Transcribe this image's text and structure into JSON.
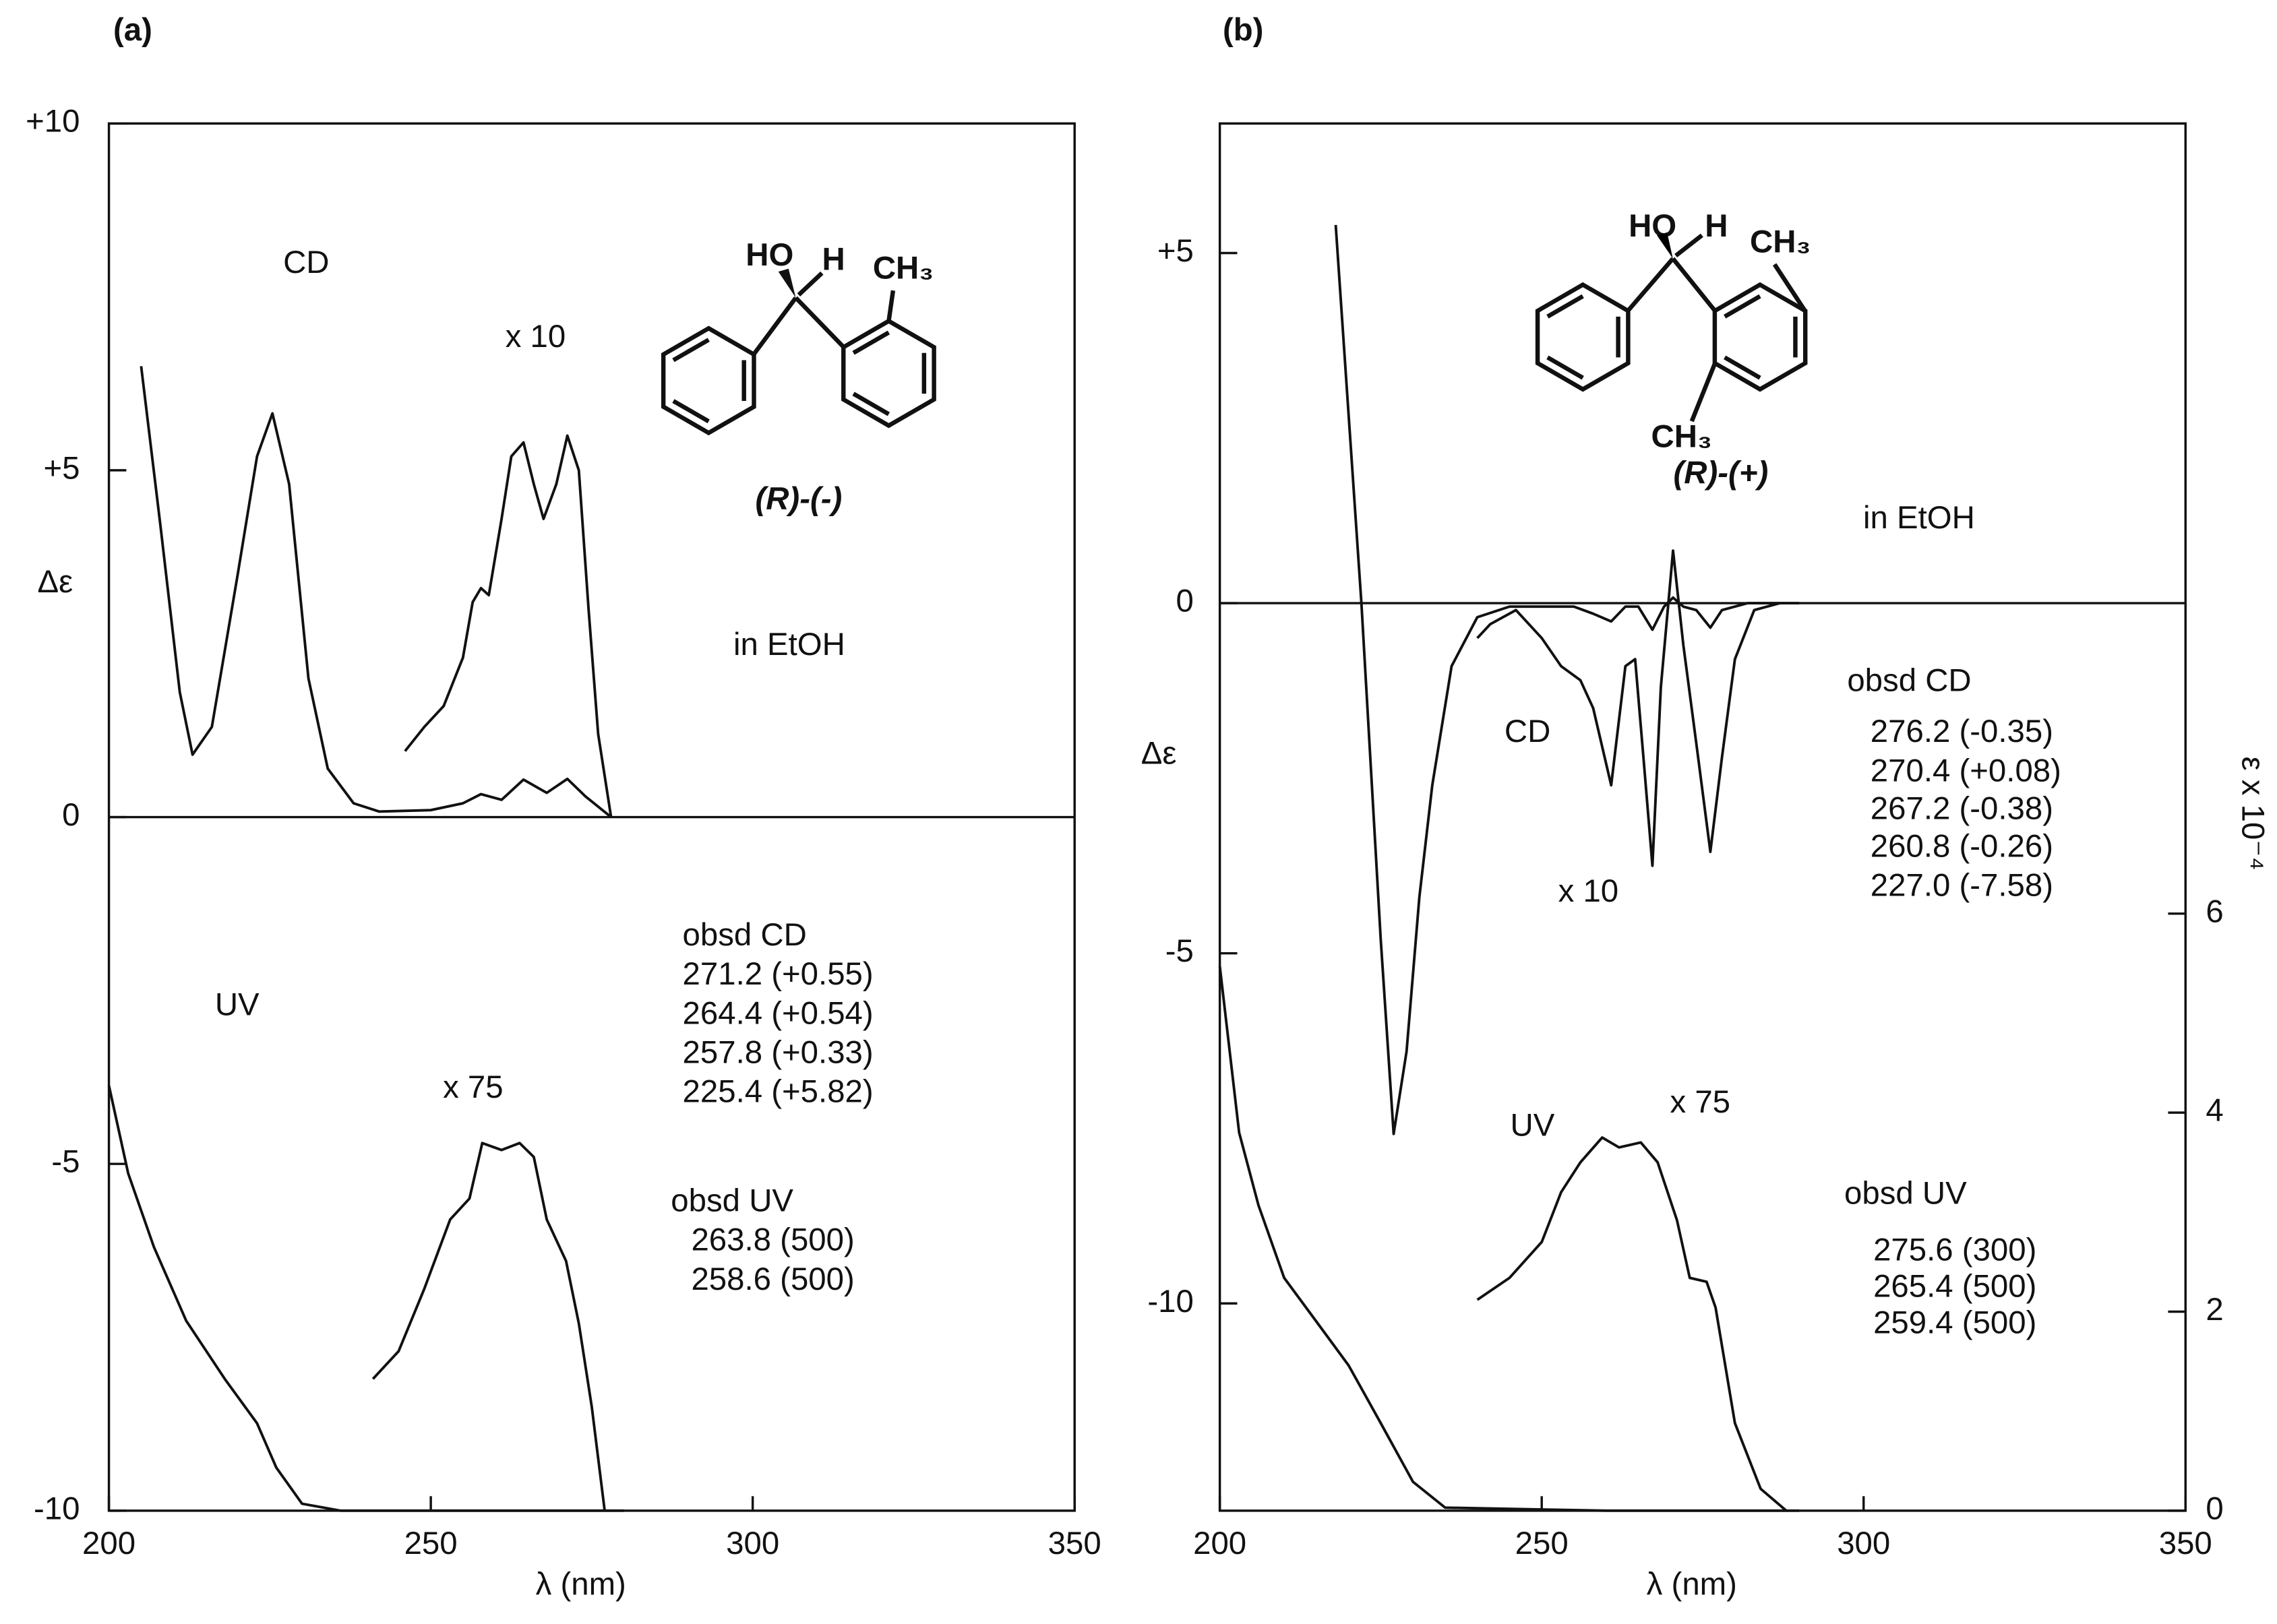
{
  "chart_data": [
    {
      "type": "line",
      "panel_label": "(a)",
      "xlabel": "λ (nm)",
      "ylabel": "Δε",
      "xlim": [
        200,
        350
      ],
      "xticks": [
        200,
        250,
        300,
        350
      ],
      "ylim": [
        -10,
        10
      ],
      "yticks": [
        -10,
        -5,
        0,
        {
          "value": 5,
          "label": "+5"
        },
        {
          "value": 10,
          "label": "+10"
        }
      ],
      "zero_line": true,
      "series": [
        {
          "name": "CD",
          "color": "#111111",
          "x": [
            205,
            208,
            211,
            213,
            216,
            220,
            223,
            225.4,
            228,
            231,
            234,
            238,
            242,
            250,
            255,
            257.8,
            261,
            264.4,
            268,
            271.2,
            274,
            278
          ],
          "values": [
            6.5,
            4.2,
            1.8,
            0.9,
            1.3,
            3.5,
            5.2,
            5.82,
            4.8,
            2.0,
            0.7,
            0.2,
            0.08,
            0.1,
            0.2,
            0.33,
            0.25,
            0.54,
            0.35,
            0.55,
            0.3,
            0
          ]
        },
        {
          "name": "x 10",
          "color": "#111111",
          "x": [
            246,
            249,
            252,
            255,
            256.5,
            257.8,
            259,
            261,
            262.5,
            264.4,
            266,
            267.5,
            269.5,
            271.2,
            273,
            274.5,
            276,
            278
          ],
          "values": [
            0.95,
            1.3,
            1.6,
            2.3,
            3.1,
            3.3,
            3.2,
            4.3,
            5.2,
            5.4,
            4.8,
            4.3,
            4.8,
            5.5,
            5.0,
            3.0,
            1.2,
            0
          ]
        },
        {
          "name": "UV",
          "color": "#111111",
          "x": [
            200,
            203,
            207,
            212,
            218,
            223,
            226,
            230,
            236,
            260,
            280
          ],
          "values": [
            -3.87,
            -5.14,
            -6.2,
            -7.26,
            -8.1,
            -8.74,
            -9.38,
            -9.9,
            -10,
            -10,
            -10
          ]
        },
        {
          "name": "x 75",
          "color": "#111111",
          "x": [
            241,
            245,
            249,
            253,
            256,
            258,
            261,
            263.8,
            266,
            268,
            271,
            273,
            275,
            277
          ],
          "values": [
            -8.1,
            -7.7,
            -6.8,
            -5.8,
            -5.5,
            -4.7,
            -4.8,
            -4.7,
            -4.9,
            -5.8,
            -6.4,
            -7.3,
            -8.5,
            -10
          ]
        }
      ],
      "structure_labels": [
        "HO",
        "H",
        "CH₃"
      ],
      "compound": "(R)-(-)",
      "annotations": [
        "in EtOH",
        "obsd CD",
        "271.2 (+0.55)",
        "264.4 (+0.54)",
        "257.8 (+0.33)",
        "225.4 (+5.82)",
        "obsd UV",
        "263.8 (500)",
        "258.6 (500)"
      ]
    },
    {
      "type": "line",
      "panel_label": "(b)",
      "xlabel": "λ (nm)",
      "ylabel": "Δε",
      "y2label": "ε x 10⁻⁴",
      "xlim": [
        200,
        350
      ],
      "xticks": [
        200,
        250,
        300,
        350
      ],
      "ylim": [
        -12.96,
        6.85
      ],
      "yticks": [
        -10,
        -5,
        0,
        {
          "value": 5,
          "label": "+5"
        }
      ],
      "y2lim": [
        0,
        13.94
      ],
      "y2ticks": [
        0,
        2,
        4,
        6
      ],
      "zero_line": true,
      "series": [
        {
          "name": "CD",
          "color": "#111111",
          "x": [
            218,
            222,
            225,
            227,
            229,
            231,
            233,
            236,
            240,
            245,
            255,
            258,
            260.8,
            263,
            265,
            267.2,
            269,
            270.4,
            272,
            274,
            276.2,
            278,
            282,
            290
          ],
          "values": [
            5.4,
            0,
            -4.8,
            -7.58,
            -6.4,
            -4.2,
            -2.6,
            -0.9,
            -0.2,
            -0.05,
            -0.05,
            -0.15,
            -0.26,
            -0.05,
            -0.05,
            -0.38,
            -0.05,
            0.08,
            -0.05,
            -0.1,
            -0.35,
            -0.1,
            0,
            0
          ]
        },
        {
          "name": "x 10",
          "color": "#111111",
          "x": [
            240,
            242,
            246,
            250,
            253,
            256,
            258,
            260.8,
            263,
            264.5,
            265.8,
            267.2,
            268.5,
            270.4,
            272,
            274,
            276.2,
            278,
            280,
            283,
            287
          ],
          "values": [
            -0.5,
            -0.3,
            -0.1,
            -0.5,
            -0.9,
            -1.1,
            -1.5,
            -2.6,
            -0.9,
            -0.8,
            -2.2,
            -3.75,
            -1.2,
            0.75,
            -0.6,
            -2.0,
            -3.55,
            -2.2,
            -0.8,
            -0.1,
            0
          ]
        },
        {
          "name": "UV",
          "color": "#111111",
          "axis": "y2",
          "x": [
            200,
            203,
            206,
            210,
            215,
            220,
            225,
            230,
            235,
            260,
            290
          ],
          "values": [
            5.47,
            3.8,
            3.07,
            2.34,
            1.9,
            1.46,
            0.88,
            0.29,
            0.03,
            0,
            0
          ]
        },
        {
          "name": "x 75",
          "color": "#111111",
          "axis": "y2",
          "x": [
            240,
            245,
            250,
            253,
            256,
            259.4,
            262,
            265.4,
            268,
            271,
            273,
            275.6,
            277,
            280,
            284,
            288
          ],
          "values": [
            2.12,
            2.34,
            2.7,
            3.2,
            3.5,
            3.75,
            3.65,
            3.7,
            3.5,
            2.92,
            2.34,
            2.3,
            2.04,
            0.88,
            0.22,
            0
          ]
        }
      ],
      "structure_labels": [
        "HO",
        "H",
        "CH₃",
        "CH₃"
      ],
      "compound": "(R)-(+)",
      "annotations": [
        "in EtOH",
        "obsd CD",
        "276.2 (-0.35)",
        "270.4 (+0.08)",
        "267.2 (-0.38)",
        "260.8 (-0.26)",
        "227.0 (-7.58)",
        "obsd UV",
        "275.6 (300)",
        "265.4 (500)",
        "259.4 (500)"
      ]
    }
  ]
}
